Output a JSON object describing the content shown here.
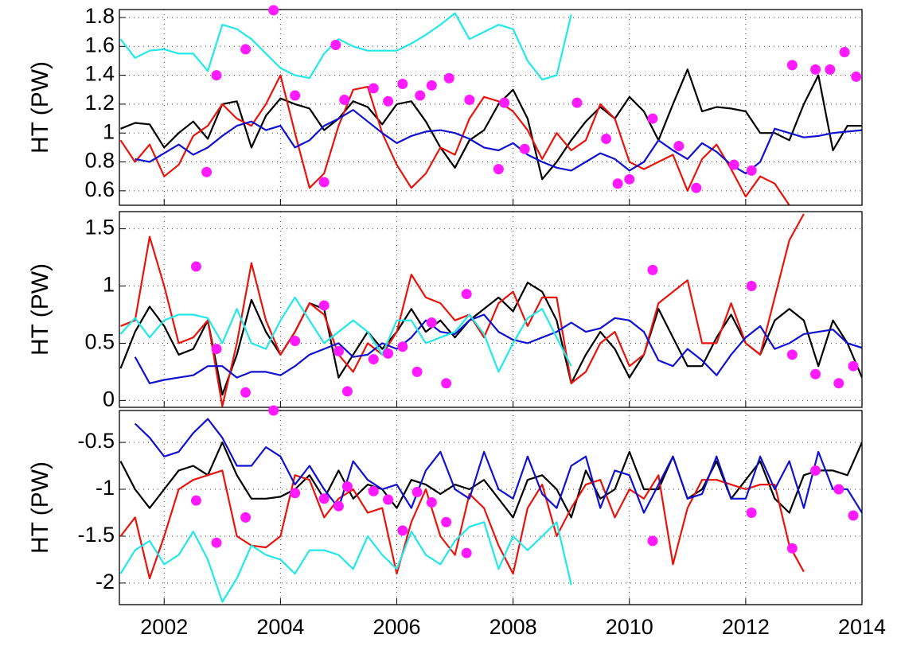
{
  "chart_data": [
    {
      "type": "line",
      "ylabel": "HT (PW)",
      "xlim": [
        2001.23,
        2014
      ],
      "xticks": [
        2002,
        2004,
        2006,
        2008,
        2010,
        2012,
        2014
      ],
      "ylim": [
        0.5,
        1.855
      ],
      "yticks": [
        0.6,
        0.8,
        1,
        1.2,
        1.4,
        1.6,
        1.8
      ],
      "grid": true,
      "x": [
        2001.25,
        2001.5,
        2001.75,
        2002,
        2002.25,
        2002.5,
        2002.75,
        2003,
        2003.25,
        2003.5,
        2003.75,
        2004,
        2004.25,
        2004.5,
        2004.75,
        2005,
        2005.25,
        2005.5,
        2005.75,
        2006,
        2006.25,
        2006.5,
        2006.75,
        2007,
        2007.25,
        2007.5,
        2007.75,
        2008,
        2008.25,
        2008.5,
        2008.75,
        2009,
        2009.25,
        2009.5,
        2009.75,
        2010,
        2010.25,
        2010.5,
        2010.75,
        2011,
        2011.25,
        2011.5,
        2011.75,
        2012,
        2012.25,
        2012.5,
        2012.75,
        2013,
        2013.25,
        2013.5,
        2013.75,
        2014
      ],
      "series": [
        {
          "color": "#000000",
          "values": [
            1.03,
            1.07,
            1.06,
            0.9,
            1.0,
            1.08,
            0.96,
            1.2,
            1.22,
            0.9,
            1.12,
            1.24,
            1.2,
            1.17,
            1.02,
            1.1,
            1.22,
            1.18,
            1.06,
            1.2,
            1.22,
            1.08,
            0.9,
            0.76,
            0.95,
            1.02,
            1.2,
            1.3,
            1.1,
            0.68,
            0.8,
            0.95,
            1.08,
            1.18,
            1.1,
            1.25,
            1.15,
            0.95,
            1.2,
            1.44,
            1.15,
            1.18,
            1.17,
            1.15,
            1.0,
            1.0,
            0.95,
            1.2,
            1.4,
            0.88,
            1.05,
            1.05
          ]
        },
        {
          "color": "#e8140c",
          "values": [
            0.95,
            0.8,
            0.92,
            0.7,
            0.78,
            0.98,
            1.05,
            1.2,
            1.1,
            1.05,
            1.2,
            1.4,
            1.0,
            0.62,
            0.72,
            1.05,
            1.3,
            1.32,
            1.0,
            0.78,
            0.62,
            0.72,
            0.9,
            0.85,
            1.1,
            1.25,
            1.22,
            1.15,
            1.02,
            0.82,
            1.0,
            0.88,
            0.95,
            1.2,
            1.1,
            0.8,
            0.75,
            0.8,
            0.85,
            0.6,
            0.82,
            0.92,
            0.75,
            0.56,
            0.7,
            0.65,
            0.5,
            null,
            null,
            null,
            null,
            null
          ]
        },
        {
          "color": "#1010d0",
          "values": [
            null,
            0.82,
            0.8,
            0.86,
            0.92,
            0.85,
            0.9,
            0.98,
            1.05,
            1.08,
            1.02,
            1.05,
            0.9,
            0.95,
            1.05,
            1.1,
            1.16,
            1.08,
            1.0,
            0.93,
            0.98,
            1.01,
            1.02,
            1.0,
            0.96,
            0.9,
            0.88,
            0.93,
            0.85,
            0.8,
            0.76,
            0.74,
            0.8,
            0.86,
            0.82,
            0.74,
            0.8,
            0.95,
            0.88,
            0.82,
            0.93,
            0.87,
            0.78,
            0.72,
            0.8,
            1.03,
            1.0,
            0.97,
            0.98,
            1.0,
            1.01,
            1.02
          ]
        },
        {
          "color": "#22e8e8",
          "values": [
            1.65,
            1.52,
            1.57,
            1.58,
            1.55,
            1.55,
            1.43,
            1.75,
            1.72,
            1.65,
            1.55,
            1.45,
            1.4,
            1.38,
            1.55,
            1.65,
            1.6,
            1.57,
            1.57,
            1.57,
            1.62,
            1.68,
            1.75,
            1.83,
            1.65,
            1.7,
            1.75,
            1.72,
            1.5,
            1.37,
            1.4,
            1.82,
            null,
            null,
            null,
            null,
            null,
            null,
            null,
            null,
            null,
            null,
            null,
            null,
            null,
            null,
            null,
            null,
            null,
            null,
            null,
            null
          ]
        }
      ],
      "points": {
        "color": "#ff1aff",
        "x": [
          2002.73,
          2002.9,
          2003.4,
          2003.88,
          2004.25,
          2004.75,
          2004.95,
          2005.1,
          2005.6,
          2005.85,
          2006.1,
          2006.4,
          2006.6,
          2006.9,
          2007.25,
          2007.75,
          2007.85,
          2008.2,
          2009.1,
          2009.6,
          2009.8,
          2010.0,
          2010.4,
          2010.85,
          2011.15,
          2011.8,
          2012.1,
          2012.8,
          2013.2,
          2013.45,
          2013.7,
          2013.9
        ],
        "values": [
          0.73,
          1.4,
          1.58,
          1.85,
          1.26,
          0.66,
          1.61,
          1.23,
          1.31,
          1.22,
          1.34,
          1.26,
          1.33,
          1.38,
          1.23,
          0.75,
          1.21,
          0.89,
          1.21,
          0.96,
          0.65,
          0.68,
          1.1,
          0.91,
          0.62,
          0.78,
          0.74,
          1.47,
          1.44,
          1.44,
          1.56,
          1.39
        ]
      }
    },
    {
      "type": "line",
      "ylabel": "HT (PW)",
      "xlim": [
        2001.23,
        2014
      ],
      "xticks": [
        2002,
        2004,
        2006,
        2008,
        2010,
        2012,
        2014
      ],
      "ylim": [
        -0.06,
        1.65
      ],
      "yticks": [
        0,
        0.5,
        1,
        1.5
      ],
      "grid": true,
      "x": [
        2001.25,
        2001.5,
        2001.75,
        2002,
        2002.25,
        2002.5,
        2002.75,
        2003,
        2003.25,
        2003.5,
        2003.75,
        2004,
        2004.25,
        2004.5,
        2004.75,
        2005,
        2005.25,
        2005.5,
        2005.75,
        2006,
        2006.25,
        2006.5,
        2006.75,
        2007,
        2007.25,
        2007.5,
        2007.75,
        2008,
        2008.25,
        2008.5,
        2008.75,
        2009,
        2009.25,
        2009.5,
        2009.75,
        2010,
        2010.25,
        2010.5,
        2010.75,
        2011,
        2011.25,
        2011.5,
        2011.75,
        2012,
        2012.25,
        2012.5,
        2012.75,
        2013,
        2013.25,
        2013.5,
        2013.75,
        2014
      ],
      "series": [
        {
          "color": "#000000",
          "values": [
            0.28,
            0.6,
            0.82,
            0.65,
            0.4,
            0.45,
            0.7,
            0.05,
            0.4,
            0.88,
            0.6,
            0.4,
            0.6,
            0.85,
            0.8,
            0.2,
            0.4,
            0.6,
            0.45,
            0.6,
            0.8,
            0.6,
            0.7,
            0.55,
            0.7,
            0.8,
            0.9,
            0.78,
            1.03,
            0.95,
            0.7,
            0.15,
            0.4,
            0.6,
            0.45,
            0.2,
            0.4,
            0.8,
            0.55,
            0.3,
            0.3,
            0.55,
            0.75,
            0.5,
            0.4,
            0.7,
            0.8,
            0.7,
            0.3,
            0.7,
            0.5,
            0.2
          ]
        },
        {
          "color": "#e8140c",
          "values": [
            0.65,
            0.7,
            1.43,
            1.0,
            0.5,
            0.55,
            0.7,
            -0.05,
            0.5,
            1.2,
            0.7,
            0.4,
            0.6,
            0.85,
            0.75,
            0.4,
            0.25,
            0.5,
            0.4,
            0.6,
            1.1,
            0.9,
            0.85,
            0.7,
            0.75,
            0.55,
            0.85,
            0.95,
            0.65,
            0.9,
            0.9,
            0.15,
            0.25,
            0.5,
            0.6,
            0.3,
            0.4,
            0.85,
            0.95,
            1.05,
            0.5,
            0.5,
            0.85,
            0.5,
            0.4,
            0.9,
            1.4,
            1.63,
            null,
            null,
            null,
            null
          ]
        },
        {
          "color": "#1010d0",
          "values": [
            null,
            0.38,
            0.15,
            0.18,
            0.2,
            0.22,
            0.3,
            0.3,
            0.2,
            0.25,
            0.25,
            0.22,
            0.3,
            0.4,
            0.45,
            0.5,
            0.38,
            0.4,
            0.5,
            0.45,
            0.55,
            0.7,
            0.6,
            0.58,
            0.7,
            0.75,
            0.6,
            0.53,
            0.5,
            0.55,
            0.6,
            0.68,
            0.6,
            0.63,
            0.72,
            0.7,
            0.6,
            0.35,
            0.3,
            0.45,
            0.35,
            0.22,
            0.4,
            0.55,
            0.65,
            0.45,
            0.5,
            0.58,
            0.6,
            0.62,
            0.5,
            0.46
          ]
        },
        {
          "color": "#22e8e8",
          "values": [
            0.58,
            0.72,
            0.55,
            0.7,
            0.75,
            0.75,
            0.72,
            0.5,
            0.8,
            0.5,
            0.45,
            0.7,
            0.9,
            0.7,
            0.5,
            0.6,
            0.7,
            0.6,
            0.4,
            0.7,
            0.7,
            0.5,
            0.55,
            0.6,
            0.75,
            0.58,
            0.25,
            0.5,
            0.72,
            0.8,
            0.55,
            0.3,
            null,
            null,
            null,
            null,
            null,
            null,
            null,
            null,
            null,
            null,
            null,
            null,
            null,
            null,
            null,
            null,
            null,
            null,
            null,
            null
          ]
        }
      ],
      "points": {
        "color": "#ff1aff",
        "x": [
          2002.55,
          2002.9,
          2003.4,
          2004.25,
          2004.75,
          2005.0,
          2005.15,
          2005.6,
          2005.85,
          2006.1,
          2006.35,
          2006.6,
          2006.85,
          2007.2,
          2010.4,
          2012.1,
          2012.8,
          2013.2,
          2013.6,
          2013.85
        ],
        "values": [
          1.17,
          0.45,
          0.07,
          0.52,
          0.83,
          0.43,
          0.08,
          0.36,
          0.41,
          0.47,
          0.25,
          0.68,
          0.15,
          0.93,
          1.14,
          1.0,
          0.4,
          0.23,
          0.15,
          0.3
        ]
      }
    },
    {
      "type": "line",
      "ylabel": "HT (PW)",
      "xlim": [
        2001.23,
        2014
      ],
      "xticks": [
        2002,
        2004,
        2006,
        2008,
        2010,
        2012,
        2014
      ],
      "ylim": [
        -2.23,
        -0.16
      ],
      "yticks": [
        -2,
        -1.5,
        -1,
        -0.5
      ],
      "grid": true,
      "x": [
        2001.25,
        2001.5,
        2001.75,
        2002,
        2002.25,
        2002.5,
        2002.75,
        2003,
        2003.25,
        2003.5,
        2003.75,
        2004,
        2004.25,
        2004.5,
        2004.75,
        2005,
        2005.25,
        2005.5,
        2005.75,
        2006,
        2006.25,
        2006.5,
        2006.75,
        2007,
        2007.25,
        2007.5,
        2007.75,
        2008,
        2008.25,
        2008.5,
        2008.75,
        2009,
        2009.25,
        2009.5,
        2009.75,
        2010,
        2010.25,
        2010.5,
        2010.75,
        2011,
        2011.25,
        2011.5,
        2011.75,
        2012,
        2012.25,
        2012.5,
        2012.75,
        2013,
        2013.25,
        2013.5,
        2013.75,
        2014
      ],
      "series": [
        {
          "color": "#000000",
          "values": [
            -0.7,
            -1.0,
            -1.2,
            -1.0,
            -0.8,
            -0.75,
            -0.85,
            -0.5,
            -0.85,
            -1.1,
            -1.1,
            -1.08,
            -1.0,
            -0.85,
            -1.1,
            -0.8,
            -1.1,
            -0.95,
            -1.0,
            -1.2,
            -0.9,
            -0.95,
            -1.05,
            -0.95,
            -1.0,
            -0.9,
            -1.1,
            -1.3,
            -0.9,
            -0.85,
            -1.0,
            -1.3,
            -0.8,
            -1.1,
            -1.0,
            -0.6,
            -1.0,
            -1.0,
            -0.65,
            -1.1,
            -1.0,
            -0.7,
            -1.1,
            -0.9,
            -0.7,
            -1.1,
            -1.25,
            -0.85,
            -0.8,
            -0.8,
            -0.85,
            -0.5
          ]
        },
        {
          "color": "#e8140c",
          "values": [
            -1.5,
            -1.3,
            -1.95,
            -1.5,
            -1.0,
            -0.9,
            -0.85,
            -0.8,
            -1.5,
            -1.6,
            -1.62,
            -1.5,
            -0.85,
            -0.9,
            -1.3,
            -1.1,
            -1.0,
            -1.25,
            -1.2,
            -1.9,
            -1.35,
            -1.0,
            -1.5,
            -1.7,
            -1.05,
            -1.2,
            -1.6,
            -1.9,
            -1.2,
            -0.95,
            -1.5,
            -1.2,
            -0.95,
            -0.9,
            -1.3,
            -1.0,
            -1.1,
            -0.85,
            -1.8,
            -1.2,
            -0.9,
            -0.9,
            -0.95,
            -1.0,
            -0.95,
            -0.95,
            -1.6,
            -1.88,
            null,
            null,
            null,
            null
          ]
        },
        {
          "color": "#1010d0",
          "values": [
            null,
            -0.3,
            -0.45,
            -0.65,
            -0.6,
            -0.4,
            -0.25,
            -0.45,
            -0.75,
            -0.75,
            -0.55,
            -0.65,
            -0.95,
            -0.75,
            -1.0,
            -1.2,
            -0.7,
            -0.9,
            -1.0,
            -0.95,
            -1.2,
            -0.8,
            -0.6,
            -1.0,
            -1.1,
            -0.6,
            -1.0,
            -1.1,
            -0.65,
            -1.05,
            -1.2,
            -0.75,
            -0.65,
            -1.2,
            -0.8,
            -0.85,
            -1.25,
            -0.95,
            -0.65,
            -1.1,
            -1.05,
            -0.65,
            -1.1,
            -1.1,
            -0.65,
            -1.0,
            -0.7,
            -1.2,
            -0.6,
            -1.0,
            -1.0,
            -1.25
          ]
        },
        {
          "color": "#22e8e8",
          "values": [
            -1.9,
            -1.65,
            -1.55,
            -1.8,
            -1.7,
            -1.45,
            -1.75,
            -2.2,
            -1.95,
            -1.6,
            -1.7,
            -1.75,
            -1.9,
            -1.65,
            -1.65,
            -1.7,
            -1.85,
            -1.5,
            -1.7,
            -1.85,
            -1.45,
            -1.7,
            -1.8,
            -1.55,
            -1.4,
            -1.35,
            -1.85,
            -1.5,
            -1.65,
            -1.5,
            -1.35,
            -2.02,
            null,
            null,
            null,
            null,
            null,
            null,
            null,
            null,
            null,
            null,
            null,
            null,
            null,
            null,
            null,
            null,
            null,
            null,
            null,
            null
          ]
        }
      ],
      "points": {
        "color": "#ff1aff",
        "x": [
          2002.55,
          2002.9,
          2003.4,
          2003.88,
          2004.25,
          2004.75,
          2005.0,
          2005.15,
          2005.6,
          2005.85,
          2006.1,
          2006.35,
          2006.6,
          2006.85,
          2007.2,
          2010.4,
          2012.1,
          2012.8,
          2013.2,
          2013.6,
          2013.85
        ],
        "values": [
          -1.12,
          -1.57,
          -1.3,
          -0.16,
          -1.04,
          -1.1,
          -1.18,
          -0.97,
          -1.02,
          -1.11,
          -1.44,
          -1.03,
          -1.14,
          -1.35,
          -1.68,
          -1.55,
          -1.25,
          -1.63,
          -0.8,
          -1.0,
          -1.28
        ]
      }
    }
  ]
}
